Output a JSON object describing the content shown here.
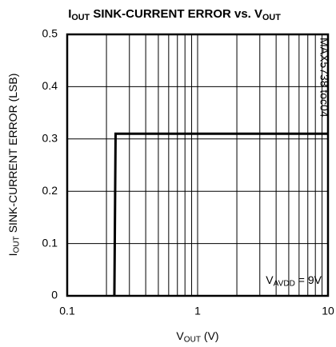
{
  "chart_data": {
    "type": "line",
    "title": [
      {
        "text": "I"
      },
      {
        "text": "OUT",
        "sub": true
      },
      {
        "text": " SINK-CURRENT ERROR vs. V"
      },
      {
        "text": "OUT",
        "sub": true
      }
    ],
    "xlabel": [
      {
        "text": "V"
      },
      {
        "text": "OUT",
        "sub": true
      },
      {
        "text": " (V)"
      }
    ],
    "ylabel": [
      {
        "text": "I"
      },
      {
        "text": "OUT",
        "sub": true
      },
      {
        "text": " SINK-CURRENT ERROR (LSB)"
      }
    ],
    "annotation": [
      {
        "text": "V"
      },
      {
        "text": "AVDD",
        "sub": true
      },
      {
        "text": " = 9V"
      }
    ],
    "side_note": "MAX5738 toc04",
    "x_log": true,
    "xlim": [
      0.1,
      10
    ],
    "xticks": [
      0.1,
      1,
      10
    ],
    "xminor": [
      0.2,
      0.3,
      0.4,
      0.5,
      0.6,
      0.7,
      0.8,
      0.9,
      2,
      3,
      4,
      5,
      6,
      7,
      8,
      9
    ],
    "ylim": [
      0,
      0.5
    ],
    "yticks": [
      0,
      0.1,
      0.2,
      0.3,
      0.4,
      0.5
    ],
    "grid": true,
    "series": [
      {
        "color": "#000000",
        "x": [
          0.23,
          0.235,
          10
        ],
        "values": [
          0,
          0.31,
          0.31
        ]
      }
    ]
  }
}
